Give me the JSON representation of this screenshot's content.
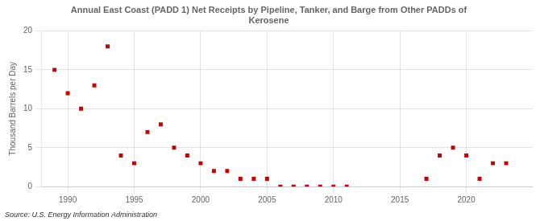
{
  "chart_data": {
    "type": "scatter",
    "title": "Annual East Coast (PADD 1) Net Receipts by Pipeline, Tanker, and Barge from Other PADDs of\nKerosene",
    "ylabel": "Thousand Barrels per Day",
    "source": "Source: U.S. Energy Information Administration",
    "x": [
      1989,
      1990,
      1991,
      1992,
      1993,
      1994,
      1995,
      1996,
      1997,
      1998,
      1999,
      2000,
      2001,
      2002,
      2003,
      2004,
      2005,
      2006,
      2007,
      2008,
      2009,
      2010,
      2011,
      2017,
      2018,
      2019,
      2020,
      2021,
      2022,
      2023
    ],
    "values": [
      15.0,
      12.0,
      10.0,
      13.0,
      18.0,
      4.0,
      3.0,
      7.0,
      8.0,
      5.0,
      4.0,
      3.0,
      2.0,
      2.0,
      1.0,
      1.0,
      1.0,
      0.0,
      0.0,
      0.0,
      0.0,
      0.0,
      0.0,
      1.0,
      4.0,
      5.0,
      4.0,
      1.0,
      3.0,
      3.0
    ],
    "color": "#cc0000",
    "marker": "square",
    "xlim": [
      1988,
      2025
    ],
    "xticks": [
      1990,
      1995,
      2000,
      2005,
      2010,
      2015,
      2020
    ],
    "ylim": [
      0,
      20
    ],
    "yticks": [
      0,
      5,
      10,
      15,
      20
    ],
    "grid": true
  }
}
